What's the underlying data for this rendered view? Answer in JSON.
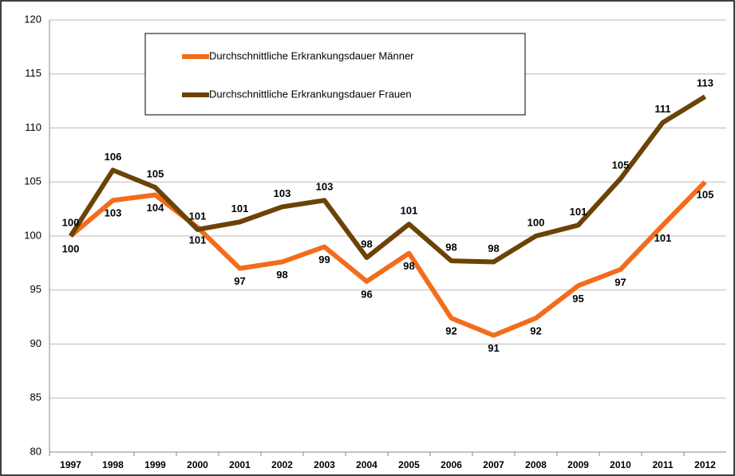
{
  "chart_data": {
    "type": "line",
    "categories": [
      "1997",
      "1998",
      "1999",
      "2000",
      "2001",
      "2002",
      "2003",
      "2004",
      "2005",
      "2006",
      "2007",
      "2008",
      "2009",
      "2010",
      "2011",
      "2012"
    ],
    "series": [
      {
        "name": "Durchschnittliche Erkrankungsdauer Männer",
        "color": "#f36c1c",
        "values": [
          100,
          103.3,
          103.8,
          100.8,
          97,
          97.6,
          99,
          95.8,
          98.4,
          92.4,
          90.8,
          92.4,
          95.4,
          96.9,
          101,
          105
        ],
        "value_labels": [
          "100",
          "103",
          "104",
          "101",
          "97",
          "98",
          "99",
          "96",
          "98",
          "92",
          "91",
          "92",
          "95",
          "97",
          "101",
          "105"
        ]
      },
      {
        "name": "Durchschnittliche Erkrankungsdauer Frauen",
        "color": "#6b4304",
        "values": [
          100,
          106.1,
          104.5,
          100.6,
          101.3,
          102.7,
          103.3,
          98,
          101.1,
          97.7,
          97.6,
          100,
          101,
          105.3,
          110.5,
          112.9
        ],
        "value_labels": [
          "100",
          "106",
          "105",
          "101",
          "101",
          "103",
          "103",
          "98",
          "101",
          "98",
          "98",
          "100",
          "101",
          "105",
          "111",
          "113"
        ]
      }
    ],
    "ylim": [
      80,
      120
    ],
    "yticks": [
      80,
      85,
      90,
      95,
      100,
      105,
      110,
      115,
      120
    ],
    "grid": true
  }
}
